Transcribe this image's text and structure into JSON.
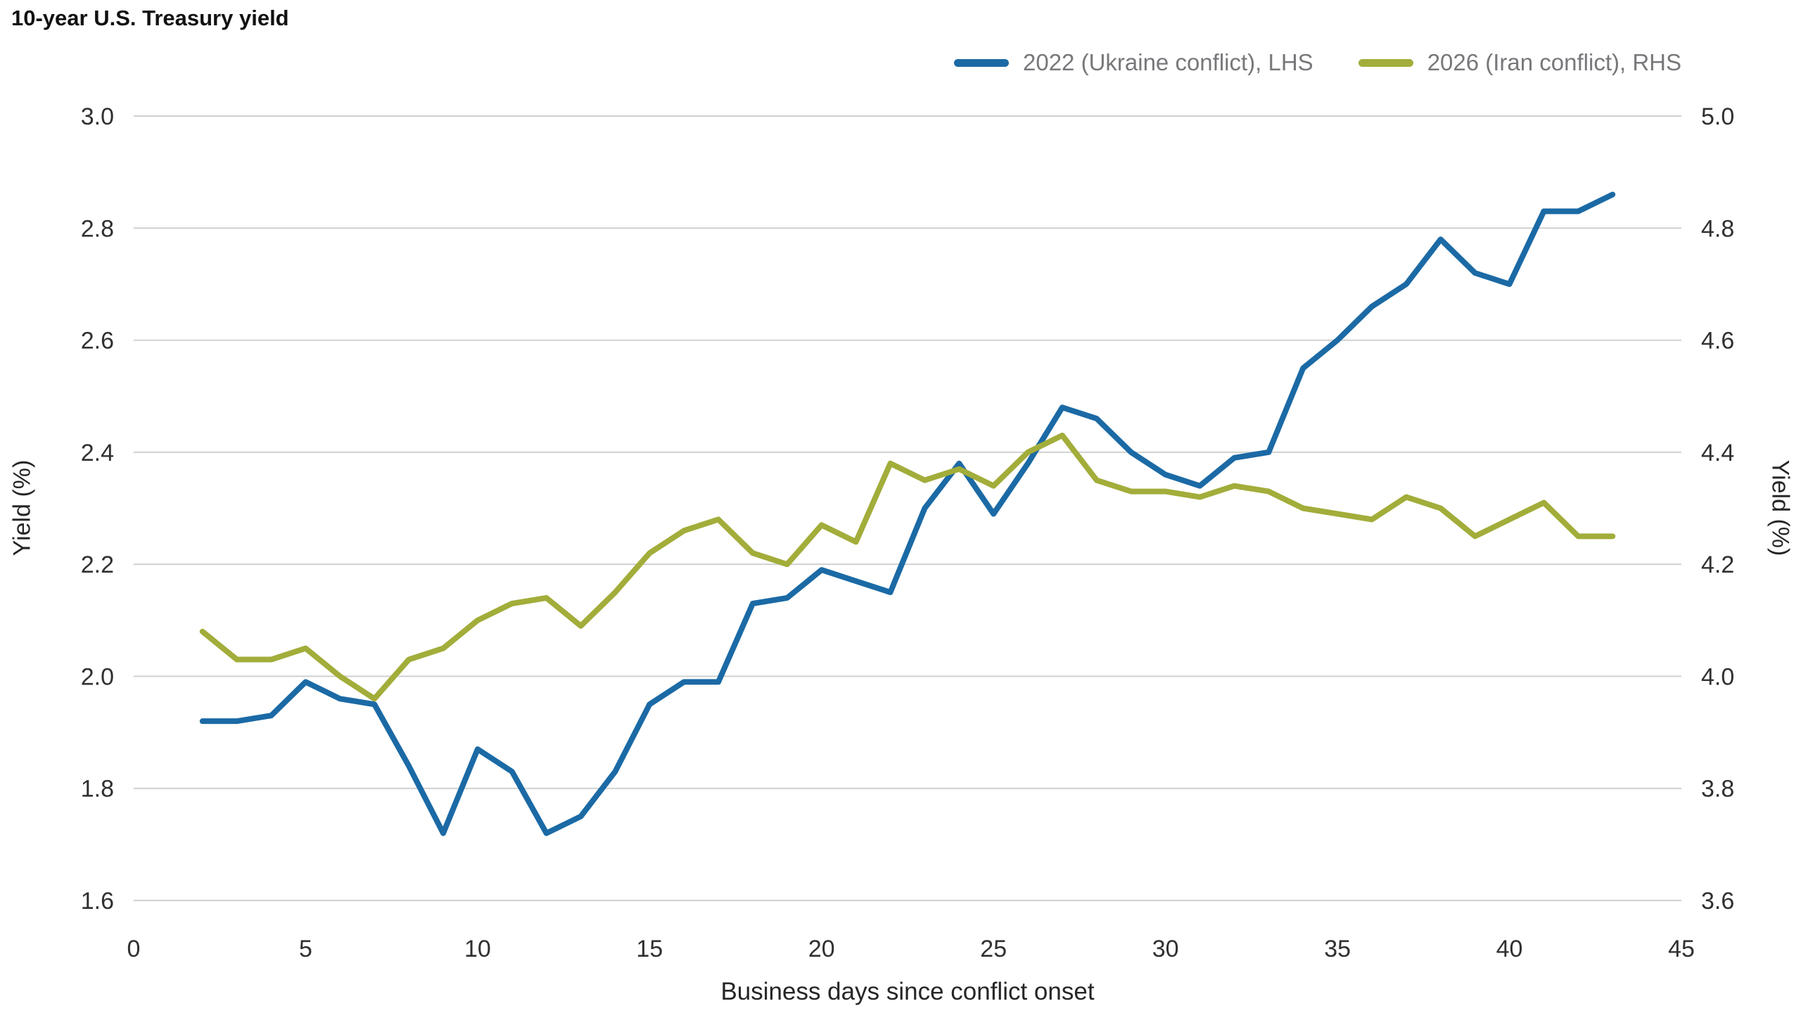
{
  "chart_data": {
    "type": "line",
    "title": "10-year U.S. Treasury yield",
    "xlabel": "Business days since conflict onset",
    "ylabel_left": "Yield (%)",
    "ylabel_right": "Yield (%)",
    "grid": true,
    "legend_position": "top-right",
    "x_min": 0,
    "x_max": 45,
    "x_ticks": [
      0,
      5,
      10,
      15,
      20,
      25,
      30,
      35,
      40,
      45
    ],
    "left_axis": {
      "min": 1.6,
      "max": 3.0,
      "ticks": [
        1.6,
        1.8,
        2.0,
        2.2,
        2.4,
        2.6,
        2.8,
        3.0
      ]
    },
    "right_axis": {
      "min": 3.6,
      "max": 5.0,
      "ticks": [
        3.6,
        3.8,
        4.0,
        4.2,
        4.4,
        4.6,
        4.8,
        5.0
      ]
    },
    "x": [
      2,
      3,
      4,
      5,
      6,
      7,
      8,
      9,
      10,
      11,
      12,
      13,
      14,
      15,
      16,
      17,
      18,
      19,
      20,
      21,
      22,
      23,
      24,
      25,
      26,
      27,
      28,
      29,
      30,
      31,
      32,
      33,
      34,
      35,
      36,
      37,
      38,
      39,
      40,
      41,
      42,
      43
    ],
    "series": [
      {
        "name": "2022 (Ukraine conflict), LHS",
        "axis": "left",
        "color": "#1b6aa5",
        "values": [
          1.92,
          1.92,
          1.93,
          1.99,
          1.96,
          1.95,
          1.84,
          1.72,
          1.87,
          1.83,
          1.72,
          1.75,
          1.83,
          1.95,
          1.99,
          1.99,
          2.13,
          2.14,
          2.19,
          2.17,
          2.15,
          2.3,
          2.38,
          2.29,
          2.38,
          2.48,
          2.46,
          2.4,
          2.36,
          2.34,
          2.39,
          2.4,
          2.55,
          2.6,
          2.66,
          2.7,
          2.78,
          2.72,
          2.7,
          2.83,
          2.83,
          2.86
        ]
      },
      {
        "name": "2026 (Iran conflict), RHS",
        "axis": "right",
        "color": "#a2ad3a",
        "values": [
          4.08,
          4.03,
          4.03,
          4.05,
          4.0,
          3.96,
          4.03,
          4.05,
          4.1,
          4.13,
          4.14,
          4.09,
          4.15,
          4.22,
          4.26,
          4.28,
          4.22,
          4.2,
          4.27,
          4.24,
          4.38,
          4.35,
          4.37,
          4.34,
          4.4,
          4.43,
          4.35,
          4.33,
          4.33,
          4.32,
          4.34,
          4.33,
          4.3,
          4.29,
          4.28,
          4.32,
          4.3,
          4.25,
          4.28,
          4.31,
          4.25,
          4.25
        ]
      }
    ]
  },
  "colors": {
    "series_2022": "#1b6aa5",
    "series_2026": "#a2ad3a",
    "legend_text": "#77787b",
    "gridline": "#cfd0d0",
    "tick_text": "#303030",
    "title_text": "#111111",
    "background": "#ffffff"
  }
}
